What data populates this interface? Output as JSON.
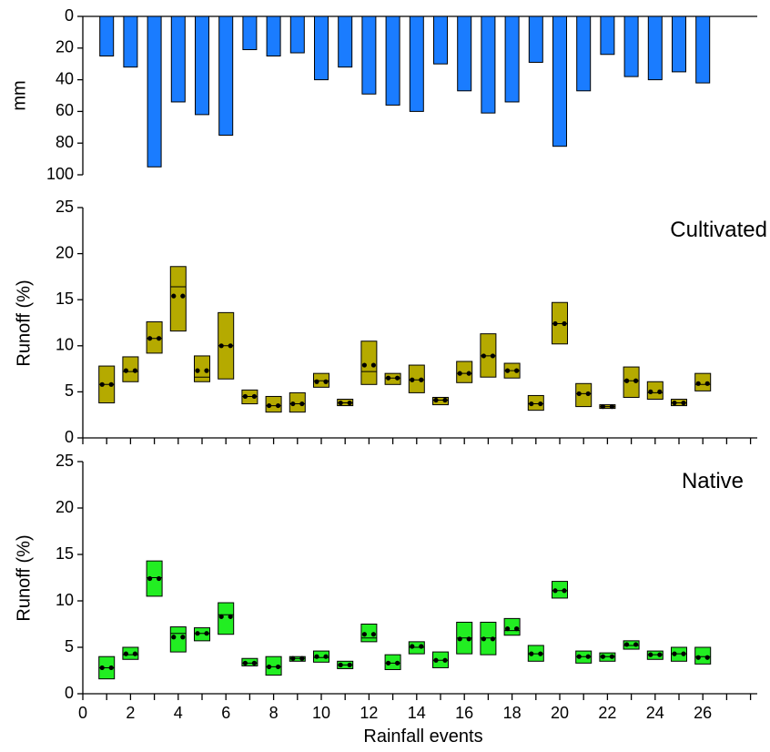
{
  "chart_data": [
    {
      "type": "bar",
      "panel": "rainfall",
      "orientation": "inverted",
      "ylabel": "mm",
      "ylim": [
        0,
        100
      ],
      "yticks": [
        0,
        20,
        40,
        60,
        80,
        100
      ],
      "x": [
        1,
        2,
        3,
        4,
        5,
        6,
        7,
        8,
        9,
        10,
        11,
        12,
        13,
        14,
        15,
        16,
        17,
        18,
        19,
        20,
        21,
        22,
        23,
        24,
        25,
        26
      ],
      "values": [
        25,
        32,
        95,
        54,
        62,
        75,
        21,
        25,
        23,
        40,
        32,
        49,
        56,
        60,
        30,
        47,
        61,
        54,
        29,
        82,
        47,
        24,
        38,
        40,
        35,
        42
      ],
      "color": "#1a7cff"
    },
    {
      "type": "box",
      "panel": "cultivated",
      "label": "Cultivated",
      "ylabel": "Runoff (%)",
      "ylim": [
        0,
        25
      ],
      "yticks": [
        0,
        5,
        10,
        15,
        20,
        25
      ],
      "color": "#b5aa00",
      "x": [
        1,
        2,
        3,
        4,
        5,
        6,
        7,
        8,
        9,
        10,
        11,
        12,
        13,
        14,
        15,
        16,
        17,
        18,
        19,
        20,
        21,
        22,
        23,
        24,
        25,
        26
      ],
      "low": [
        3.8,
        6.1,
        9.2,
        11.6,
        6.1,
        6.4,
        3.7,
        2.8,
        2.8,
        5.5,
        3.5,
        5.8,
        5.8,
        4.9,
        3.6,
        6.0,
        6.6,
        6.5,
        3.0,
        10.2,
        3.4,
        3.2,
        4.4,
        4.2,
        3.5,
        5.1
      ],
      "high": [
        7.8,
        8.8,
        12.6,
        18.6,
        8.9,
        13.6,
        5.2,
        4.5,
        4.9,
        7.0,
        4.2,
        10.5,
        7.0,
        7.9,
        4.4,
        8.3,
        11.3,
        8.1,
        4.6,
        14.7,
        5.9,
        3.6,
        7.7,
        6.1,
        4.2,
        7.0
      ],
      "median": [
        5.8,
        7.2,
        10.8,
        16.4,
        6.6,
        10.0,
        4.5,
        3.5,
        3.7,
        6.2,
        3.8,
        7.2,
        6.5,
        6.3,
        4.1,
        7.0,
        8.9,
        7.3,
        3.7,
        12.4,
        4.8,
        3.4,
        6.2,
        4.9,
        3.8,
        5.8
      ],
      "mean": [
        5.8,
        7.3,
        10.8,
        15.4,
        7.3,
        10.0,
        4.5,
        3.5,
        3.7,
        6.1,
        3.8,
        7.9,
        6.5,
        6.3,
        4.1,
        7.0,
        8.9,
        7.3,
        3.7,
        12.4,
        4.8,
        3.4,
        6.2,
        5.0,
        3.8,
        5.9
      ]
    },
    {
      "type": "box",
      "panel": "native",
      "label": "Native",
      "ylabel": "Runoff (%)",
      "xlabel": "Rainfall events",
      "ylim": [
        0,
        25
      ],
      "yticks": [
        0,
        5,
        10,
        15,
        20,
        25
      ],
      "xticks": [
        0,
        2,
        4,
        6,
        8,
        10,
        12,
        14,
        16,
        18,
        20,
        22,
        24,
        26
      ],
      "color": "#22ee22",
      "x": [
        1,
        2,
        3,
        4,
        5,
        6,
        7,
        8,
        9,
        10,
        11,
        12,
        13,
        14,
        15,
        16,
        17,
        18,
        19,
        20,
        21,
        22,
        23,
        24,
        25,
        26
      ],
      "low": [
        1.6,
        3.7,
        10.5,
        4.5,
        5.7,
        6.4,
        3.0,
        2.0,
        3.5,
        3.4,
        2.7,
        5.6,
        2.6,
        4.3,
        2.8,
        4.3,
        4.2,
        6.3,
        3.5,
        10.3,
        3.3,
        3.5,
        4.8,
        3.7,
        3.5,
        3.2
      ],
      "high": [
        4.0,
        5.0,
        14.3,
        7.2,
        7.1,
        9.8,
        3.8,
        4.0,
        4.0,
        4.6,
        3.5,
        7.5,
        4.2,
        5.6,
        4.5,
        7.7,
        7.7,
        8.1,
        5.2,
        12.1,
        4.6,
        4.4,
        5.7,
        4.6,
        5.0,
        5.0
      ],
      "median": [
        2.8,
        4.2,
        12.5,
        6.5,
        6.5,
        8.5,
        3.3,
        2.9,
        3.8,
        3.9,
        3.1,
        6.0,
        3.3,
        5.0,
        3.6,
        6.0,
        6.0,
        6.8,
        4.3,
        11.1,
        4.0,
        4.0,
        5.2,
        4.2,
        4.3,
        4.0
      ],
      "mean": [
        2.8,
        4.3,
        12.4,
        6.1,
        6.5,
        8.3,
        3.3,
        2.9,
        3.8,
        4.0,
        3.1,
        6.4,
        3.3,
        5.1,
        3.6,
        5.9,
        5.9,
        7.0,
        4.3,
        11.1,
        4.0,
        4.0,
        5.3,
        4.2,
        4.3,
        3.9
      ]
    }
  ]
}
